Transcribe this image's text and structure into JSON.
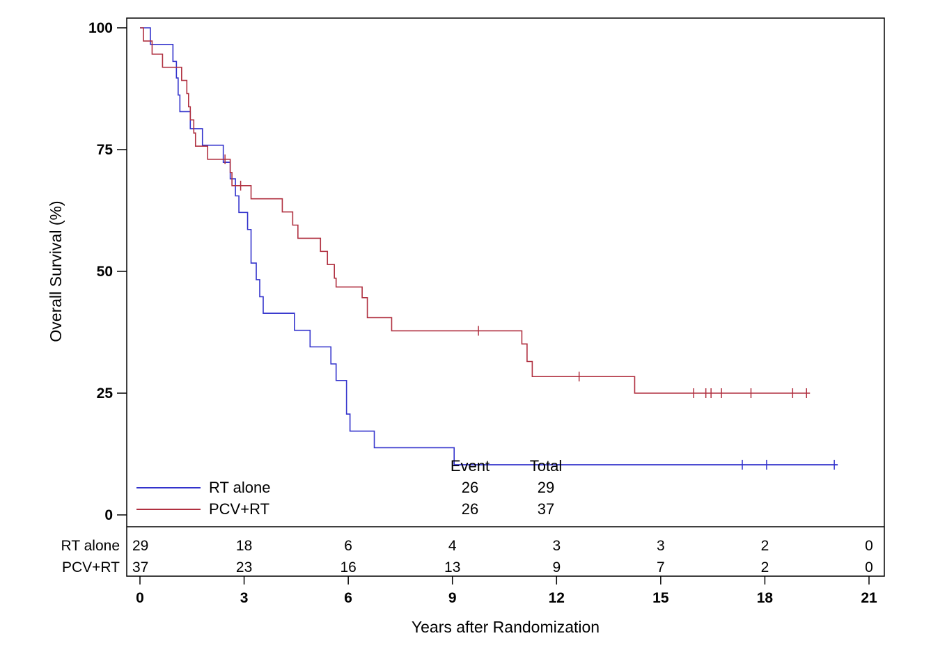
{
  "chart_data": {
    "type": "line",
    "subtype": "kaplan-meier",
    "title": "",
    "xlabel": "Years after Randomization",
    "ylabel": "Overall Survival (%)",
    "xlim": [
      0,
      21
    ],
    "ylim": [
      0,
      100
    ],
    "x_ticks": [
      0,
      3,
      6,
      9,
      12,
      15,
      18,
      21
    ],
    "y_ticks": [
      0,
      25,
      50,
      75,
      100
    ],
    "grid": false,
    "series": [
      {
        "name": "RT alone",
        "color": "#3333cc",
        "events": 26,
        "total": 29,
        "steps": [
          [
            0,
            100
          ],
          [
            0.3,
            96.6
          ],
          [
            0.95,
            93.1
          ],
          [
            1.05,
            89.7
          ],
          [
            1.1,
            86.2
          ],
          [
            1.15,
            82.8
          ],
          [
            1.45,
            79.3
          ],
          [
            1.8,
            75.9
          ],
          [
            2.4,
            72.4
          ],
          [
            2.6,
            69.0
          ],
          [
            2.75,
            65.5
          ],
          [
            2.85,
            62.1
          ],
          [
            3.1,
            58.6
          ],
          [
            3.2,
            51.7
          ],
          [
            3.35,
            48.3
          ],
          [
            3.45,
            44.8
          ],
          [
            3.55,
            41.4
          ],
          [
            4.45,
            37.9
          ],
          [
            4.9,
            34.5
          ],
          [
            5.5,
            31.0
          ],
          [
            5.65,
            27.6
          ],
          [
            5.95,
            20.7
          ],
          [
            6.05,
            17.2
          ],
          [
            6.75,
            13.8
          ],
          [
            9.05,
            10.3
          ],
          [
            20.1,
            10.3
          ]
        ],
        "censored": [
          17.35,
          18.05,
          20.0
        ]
      },
      {
        "name": "PCV+RT",
        "color": "#b03040",
        "events": 26,
        "total": 37,
        "steps": [
          [
            0,
            100
          ],
          [
            0.1,
            97.3
          ],
          [
            0.35,
            94.6
          ],
          [
            0.65,
            91.9
          ],
          [
            1.2,
            89.2
          ],
          [
            1.35,
            86.5
          ],
          [
            1.4,
            83.8
          ],
          [
            1.45,
            81.1
          ],
          [
            1.55,
            78.4
          ],
          [
            1.6,
            75.7
          ],
          [
            1.95,
            73.0
          ],
          [
            2.6,
            70.3
          ],
          [
            2.65,
            67.6
          ],
          [
            3.2,
            64.9
          ],
          [
            4.1,
            62.2
          ],
          [
            4.4,
            59.5
          ],
          [
            4.55,
            56.8
          ],
          [
            4.6,
            56.8
          ],
          [
            5.2,
            54.1
          ],
          [
            5.4,
            51.4
          ],
          [
            5.6,
            48.6
          ],
          [
            5.65,
            46.8
          ],
          [
            6.4,
            44.6
          ],
          [
            6.55,
            40.5
          ],
          [
            7.25,
            37.8
          ],
          [
            11.0,
            35.1
          ],
          [
            11.15,
            31.5
          ],
          [
            11.3,
            28.4
          ],
          [
            14.25,
            25.0
          ],
          [
            19.3,
            25.0
          ]
        ],
        "censored": [
          2.45,
          2.9,
          9.75,
          12.65,
          15.95,
          16.3,
          16.45,
          16.75,
          17.6,
          18.8,
          19.2
        ]
      }
    ],
    "legend": {
      "placement": "bottom-left",
      "header_event": "Event",
      "header_total": "Total",
      "entries": [
        {
          "label": "RT alone",
          "event": "26",
          "total": "29"
        },
        {
          "label": "PCV+RT",
          "event": "26",
          "total": "37"
        }
      ]
    },
    "risk_table": {
      "times": [
        0,
        3,
        6,
        9,
        12,
        15,
        18,
        21
      ],
      "rows": [
        {
          "label": "RT alone",
          "counts": [
            "29",
            "18",
            "6",
            "4",
            "3",
            "3",
            "2",
            "0"
          ]
        },
        {
          "label": "PCV+RT",
          "counts": [
            "37",
            "23",
            "16",
            "13",
            "9",
            "7",
            "2",
            "0"
          ]
        }
      ]
    }
  }
}
